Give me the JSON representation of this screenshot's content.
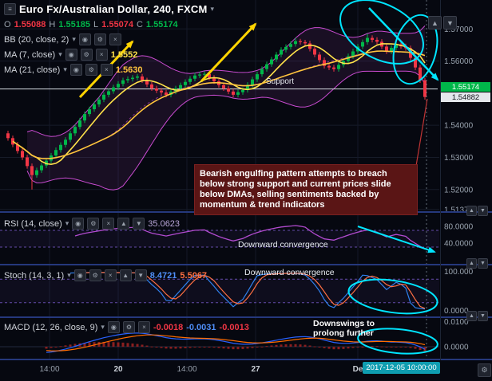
{
  "header": {
    "title": "Euro Fx/Australian Dollar, 240, FXCM",
    "ohlc": {
      "o_label": "O",
      "o_value": "1.55088",
      "h_label": "H",
      "h_value": "1.55185",
      "l_label": "L",
      "l_value": "1.55074",
      "c_label": "C",
      "c_value": "1.55174"
    }
  },
  "indicators": {
    "bb": {
      "label": "BB (20, close, 2)"
    },
    "ma7": {
      "label": "MA (7, close)",
      "value": "1.5552"
    },
    "ma21": {
      "label": "MA (21, close)",
      "value": "1.5630"
    }
  },
  "panes": {
    "rsi": {
      "label": "RSI (14, close)",
      "value": "35.0623",
      "ticks": [
        "80.0000",
        "40.0000"
      ],
      "annotation": "Downward convergence"
    },
    "stoch": {
      "label": "Stoch (14, 3, 1)",
      "k_value": "8.4721",
      "d_value": "5.5067",
      "ticks": [
        "100.000",
        "0.0000"
      ],
      "annotation": "Downward convergence"
    },
    "macd": {
      "label": "MACD (12, 26, close, 9)",
      "macd_value": "-0.0018",
      "signal_value": "-0.0031",
      "hist_value": "-0.0013",
      "ticks": [
        "0.0100",
        "0.0000"
      ],
      "annotation": "Downswings to prolong further"
    }
  },
  "price_axis": {
    "ticks": [
      "1.57000",
      "1.56000",
      "1.54000",
      "1.53000",
      "1.52000",
      "1.51378"
    ],
    "last_badge": "1.55174",
    "current_badge": "1.54882"
  },
  "time_axis": {
    "labels": [
      "14:00",
      "20",
      "14:00",
      "27",
      "De"
    ],
    "badge": "2017-12-05 10:00:00"
  },
  "annotations": {
    "support_label": "Support",
    "note": "Bearish engulfing pattern attempts to breach below strong support and current prices slide below DMAs, selling sentiments backed by momentum & trend indicators"
  },
  "icons": {
    "menu": "≡",
    "caret": "▾",
    "eye": "◉",
    "gear": "⚙",
    "close": "×",
    "up": "▲",
    "down": "▼",
    "more": "…"
  },
  "colors": {
    "bg": "#060810",
    "up": "#00b74a",
    "down": "#f23645",
    "bb": "#c84bd0",
    "bb_fill": "rgba(200,75,208,0.10)",
    "ma7": "#ffe24a",
    "ma21": "#ffc43d",
    "rsi": "#b24bd0",
    "band": "#7b5ccf",
    "band_fill": "rgba(123,92,207,0.07)",
    "stoch_k": "#2f80ed",
    "stoch_d": "#ff7043",
    "macd_line": "#2962ff",
    "macd_signal": "#ff6d00",
    "macd_hist": "#8a1f1f",
    "accent_yellow": "#ffd400",
    "accent_cyan": "#00e5ff",
    "support": "#d7dce3",
    "badge_green": "#00b74a",
    "badge_neutral": "#e4e7ec",
    "badge_time": "#0f9db0",
    "divider": "#25387c"
  },
  "chart_data": {
    "type": "candlestick",
    "title": "Euro Fx/Australian Dollar, 240, FXCM",
    "price_range": [
      1.513,
      1.579
    ],
    "support_level": 1.5513,
    "last_close": 1.54882,
    "x_labels": [
      "14:00",
      "20",
      "14:00",
      "27",
      "De",
      "2017-12-05 10:00:00"
    ],
    "overlays": [
      "BB(20,2)",
      "MA(7)",
      "MA(21)"
    ],
    "oscillators": [
      {
        "name": "RSI(14)",
        "last": 35.0623,
        "ticks": [
          80,
          40
        ]
      },
      {
        "name": "Stoch(14,3,1)",
        "last": [
          8.4721,
          5.5067
        ],
        "ticks": [
          100,
          0
        ]
      },
      {
        "name": "MACD(12,26,9)",
        "last": [
          -0.0018,
          -0.0031,
          -0.0013
        ],
        "ticks": [
          0.01,
          0
        ]
      }
    ],
    "annotations": [
      "Support",
      "Downward convergence",
      "Downward convergence",
      "Downswings to prolong further",
      "Bearish engulfing pattern attempts to breach below strong support and current prices slide below DMAs, selling sentiments backed by momentum & trend indicators"
    ],
    "candles": [
      [
        1.5375,
        1.5383,
        1.5352,
        1.536
      ],
      [
        1.536,
        1.5368,
        1.5332,
        1.534
      ],
      [
        1.534,
        1.5348,
        1.5312,
        1.532
      ],
      [
        1.532,
        1.5328,
        1.5292,
        1.53
      ],
      [
        1.53,
        1.5308,
        1.5265,
        1.5273
      ],
      [
        1.5273,
        1.5281,
        1.52,
        1.5245
      ],
      [
        1.5245,
        1.5268,
        1.5237,
        1.526
      ],
      [
        1.526,
        1.5283,
        1.5252,
        1.5275
      ],
      [
        1.5275,
        1.5298,
        1.5267,
        1.529
      ],
      [
        1.529,
        1.5314,
        1.5282,
        1.5306
      ],
      [
        1.5306,
        1.5331,
        1.5298,
        1.5323
      ],
      [
        1.5323,
        1.5347,
        1.5315,
        1.5339
      ],
      [
        1.5339,
        1.5363,
        1.5331,
        1.5355
      ],
      [
        1.5355,
        1.5383,
        1.5347,
        1.5375
      ],
      [
        1.5375,
        1.5403,
        1.5367,
        1.5395
      ],
      [
        1.5395,
        1.5423,
        1.5387,
        1.5415
      ],
      [
        1.5415,
        1.5443,
        1.5407,
        1.5435
      ],
      [
        1.5435,
        1.5458,
        1.5427,
        1.545
      ],
      [
        1.545,
        1.5473,
        1.5442,
        1.5465
      ],
      [
        1.5465,
        1.5488,
        1.5457,
        1.548
      ],
      [
        1.548,
        1.5503,
        1.5472,
        1.5495
      ],
      [
        1.5495,
        1.5514,
        1.5487,
        1.5506
      ],
      [
        1.5506,
        1.5526,
        1.5498,
        1.5518
      ],
      [
        1.5518,
        1.5537,
        1.551,
        1.5529
      ],
      [
        1.5529,
        1.5548,
        1.5521,
        1.554
      ],
      [
        1.554,
        1.5552,
        1.5532,
        1.5544
      ],
      [
        1.5544,
        1.5556,
        1.5536,
        1.5548
      ],
      [
        1.5548,
        1.556,
        1.554,
        1.5552
      ],
      [
        1.5552,
        1.556,
        1.5532,
        1.554
      ],
      [
        1.554,
        1.5548,
        1.5519,
        1.5527
      ],
      [
        1.5527,
        1.5535,
        1.5507,
        1.5515
      ],
      [
        1.5515,
        1.5523,
        1.55,
        1.5508
      ],
      [
        1.5508,
        1.5516,
        1.5494,
        1.5502
      ],
      [
        1.5502,
        1.551,
        1.5487,
        1.5495
      ],
      [
        1.5495,
        1.5513,
        1.5487,
        1.5505
      ],
      [
        1.5505,
        1.5523,
        1.5497,
        1.5515
      ],
      [
        1.5515,
        1.5533,
        1.5507,
        1.5525
      ],
      [
        1.5525,
        1.5543,
        1.5517,
        1.5535
      ],
      [
        1.5535,
        1.5553,
        1.5527,
        1.5545
      ],
      [
        1.5545,
        1.5563,
        1.5537,
        1.5555
      ],
      [
        1.5555,
        1.5566,
        1.5547,
        1.5558
      ],
      [
        1.5558,
        1.5568,
        1.555,
        1.556
      ],
      [
        1.556,
        1.5568,
        1.554,
        1.5548
      ],
      [
        1.5548,
        1.5556,
        1.5529,
        1.5537
      ],
      [
        1.5537,
        1.5545,
        1.5517,
        1.5525
      ],
      [
        1.5525,
        1.5533,
        1.5507,
        1.5515
      ],
      [
        1.5515,
        1.5523,
        1.5497,
        1.5505
      ],
      [
        1.5505,
        1.5513,
        1.5487,
        1.5495
      ],
      [
        1.5495,
        1.5511,
        1.5487,
        1.5503
      ],
      [
        1.5503,
        1.5518,
        1.5495,
        1.551
      ],
      [
        1.551,
        1.5534,
        1.5502,
        1.5526
      ],
      [
        1.5526,
        1.5551,
        1.5518,
        1.5543
      ],
      [
        1.5543,
        1.5567,
        1.5535,
        1.5559
      ],
      [
        1.5559,
        1.5583,
        1.5551,
        1.5575
      ],
      [
        1.5575,
        1.5598,
        1.5567,
        1.559
      ],
      [
        1.559,
        1.5613,
        1.5582,
        1.5605
      ],
      [
        1.5605,
        1.5628,
        1.5597,
        1.562
      ],
      [
        1.562,
        1.5643,
        1.5612,
        1.5635
      ],
      [
        1.5635,
        1.5652,
        1.5627,
        1.5644
      ],
      [
        1.5644,
        1.5661,
        1.5636,
        1.5653
      ],
      [
        1.5653,
        1.5672,
        1.5645,
        1.5662
      ],
      [
        1.5662,
        1.5669,
        1.5651,
        1.5659
      ],
      [
        1.5659,
        1.5666,
        1.5647,
        1.5655
      ],
      [
        1.5655,
        1.5663,
        1.563,
        1.5638
      ],
      [
        1.5638,
        1.5646,
        1.5612,
        1.562
      ],
      [
        1.562,
        1.5628,
        1.5595,
        1.5603
      ],
      [
        1.5603,
        1.5611,
        1.5577,
        1.5585
      ],
      [
        1.5585,
        1.5593,
        1.5572,
        1.558
      ],
      [
        1.558,
        1.5588,
        1.5567,
        1.5575
      ],
      [
        1.5575,
        1.5596,
        1.5567,
        1.5588
      ],
      [
        1.5588,
        1.5608,
        1.558,
        1.56
      ],
      [
        1.56,
        1.5623,
        1.5592,
        1.5615
      ],
      [
        1.5615,
        1.5638,
        1.5607,
        1.563
      ],
      [
        1.563,
        1.5653,
        1.5622,
        1.5645
      ],
      [
        1.5645,
        1.5667,
        1.5637,
        1.5659
      ],
      [
        1.5659,
        1.5685,
        1.5651,
        1.5672
      ],
      [
        1.5672,
        1.568,
        1.5658,
        1.5666
      ],
      [
        1.5666,
        1.5674,
        1.5652,
        1.566
      ],
      [
        1.566,
        1.5668,
        1.5637,
        1.5645
      ],
      [
        1.5645,
        1.5653,
        1.5622,
        1.563
      ],
      [
        1.563,
        1.5649,
        1.5622,
        1.5641
      ],
      [
        1.5641,
        1.566,
        1.5633,
        1.5652
      ],
      [
        1.5652,
        1.566,
        1.5638,
        1.5646
      ],
      [
        1.5646,
        1.5654,
        1.5632,
        1.564
      ],
      [
        1.564,
        1.5648,
        1.5602,
        1.561
      ],
      [
        1.561,
        1.5618,
        1.5572,
        1.558
      ],
      [
        1.558,
        1.5588,
        1.5532,
        1.554
      ],
      [
        1.554,
        1.5548,
        1.548,
        1.54882
      ]
    ]
  }
}
